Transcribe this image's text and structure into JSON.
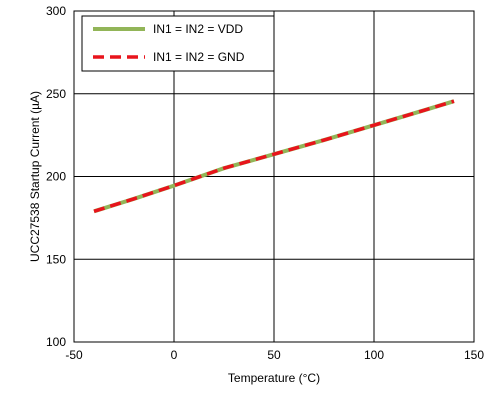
{
  "chart_data": {
    "type": "line",
    "title": "",
    "xlabel": "Temperature (°C)",
    "ylabel": "UCC27538 Startup Current (µA)",
    "xlim": [
      -50,
      150
    ],
    "ylim": [
      100,
      300
    ],
    "xticks": [
      -50,
      0,
      50,
      100,
      150
    ],
    "yticks": [
      100,
      150,
      200,
      250,
      300
    ],
    "grid": true,
    "legend_position": "top-left",
    "series": [
      {
        "name": "IN1 = IN2 = VDD",
        "color": "#92b558",
        "style": "solid",
        "x": [
          -40,
          -20,
          0,
          25,
          50,
          75,
          100,
          125,
          140
        ],
        "y": [
          179,
          186.5,
          194.5,
          205,
          213.5,
          222,
          231,
          240,
          245.5
        ]
      },
      {
        "name": "IN1 = IN2 = GND",
        "color": "#e8141c",
        "style": "dashed",
        "x": [
          -40,
          -20,
          0,
          25,
          50,
          75,
          100,
          125,
          140
        ],
        "y": [
          179,
          186.5,
          194.5,
          205,
          213.5,
          222,
          231,
          240,
          245.5
        ]
      }
    ]
  }
}
